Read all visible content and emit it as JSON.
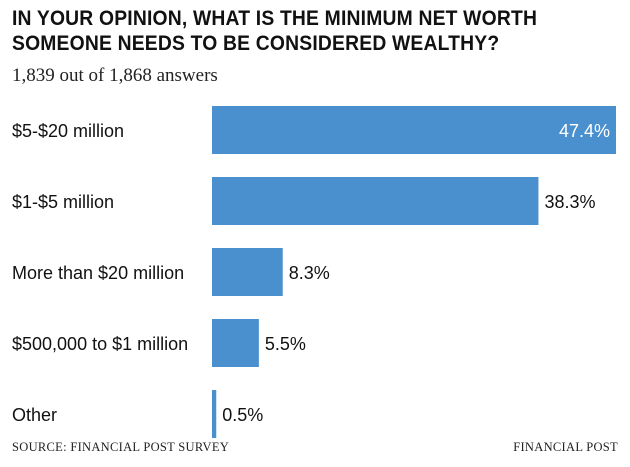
{
  "header": {
    "title_line1": "IN YOUR OPINION, WHAT IS THE MINIMUM NET WORTH",
    "title_line2": "SOMEONE NEEDS TO BE CONSIDERED WEALTHY?",
    "subtitle": "1,839 out of 1,868 answers"
  },
  "footer": {
    "source": "SOURCE: FINANCIAL POST SURVEY",
    "credit": "FINANCIAL POST"
  },
  "colors": {
    "bar": "#4a90cf",
    "label_inside": "#ffffff",
    "label_outside": "#111111"
  },
  "chart_data": {
    "type": "bar",
    "orientation": "horizontal",
    "categories": [
      "$5-$20 million",
      "$1-$5 million",
      "More than $20 million",
      "$500,000 to $1 million",
      "Other"
    ],
    "values": [
      47.4,
      38.3,
      8.3,
      5.5,
      0.5
    ],
    "value_labels": [
      "47.4%",
      "38.3%",
      "8.3%",
      "5.5%",
      "0.5%"
    ],
    "unit": "%",
    "xlim": [
      0,
      47.4
    ],
    "grid": false,
    "legend": "none"
  }
}
